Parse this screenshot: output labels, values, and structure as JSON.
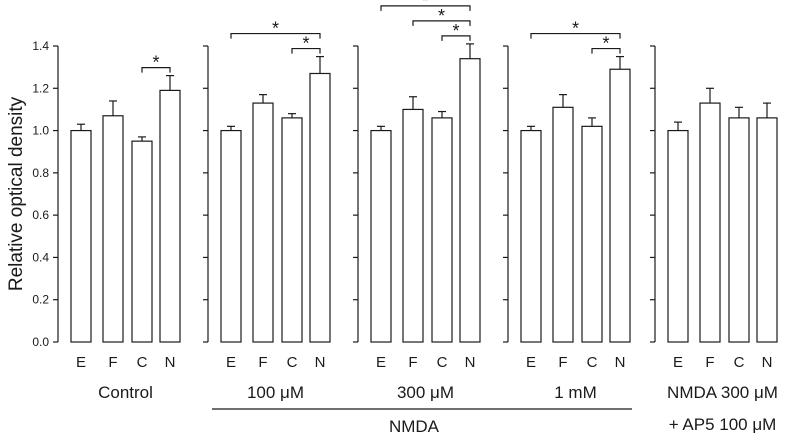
{
  "chart_data": {
    "type": "bar",
    "ylabel": "Relative optical density",
    "ylim": [
      0,
      1.4
    ],
    "yticks": [
      "0.0",
      "0.2",
      "0.4",
      "0.6",
      "0.8",
      "1.0",
      "1.2",
      "1.4"
    ],
    "categories": [
      "E",
      "F",
      "C",
      "N"
    ],
    "panels": [
      {
        "label": "Control",
        "values": [
          1.0,
          1.07,
          0.95,
          1.19
        ],
        "errors": [
          0.03,
          0.07,
          0.02,
          0.07
        ],
        "significance": [
          {
            "from": 2,
            "to": 3,
            "mark": "*"
          }
        ]
      },
      {
        "label": "100 μM",
        "values": [
          1.0,
          1.13,
          1.06,
          1.27
        ],
        "errors": [
          0.02,
          0.04,
          0.02,
          0.08
        ],
        "significance": [
          {
            "from": 0,
            "to": 3,
            "mark": "*"
          },
          {
            "from": 2,
            "to": 3,
            "mark": "*"
          }
        ]
      },
      {
        "label": "300 μM",
        "values": [
          1.0,
          1.1,
          1.06,
          1.34
        ],
        "errors": [
          0.02,
          0.06,
          0.03,
          0.07
        ],
        "significance": [
          {
            "from": 0,
            "to": 3,
            "mark": "*"
          },
          {
            "from": 1,
            "to": 3,
            "mark": "*"
          },
          {
            "from": 2,
            "to": 3,
            "mark": "*"
          }
        ]
      },
      {
        "label": "1 mM",
        "values": [
          1.0,
          1.11,
          1.02,
          1.29
        ],
        "errors": [
          0.02,
          0.06,
          0.04,
          0.06
        ],
        "significance": [
          {
            "from": 0,
            "to": 3,
            "mark": "*"
          },
          {
            "from": 2,
            "to": 3,
            "mark": "*"
          }
        ]
      },
      {
        "label": "NMDA 300 μM",
        "label_line2": "+ AP5 100 μM",
        "values": [
          1.0,
          1.13,
          1.06,
          1.06
        ],
        "errors": [
          0.04,
          0.07,
          0.05,
          0.07
        ],
        "significance": []
      }
    ],
    "bracket_label": "NMDA",
    "grid": false
  }
}
